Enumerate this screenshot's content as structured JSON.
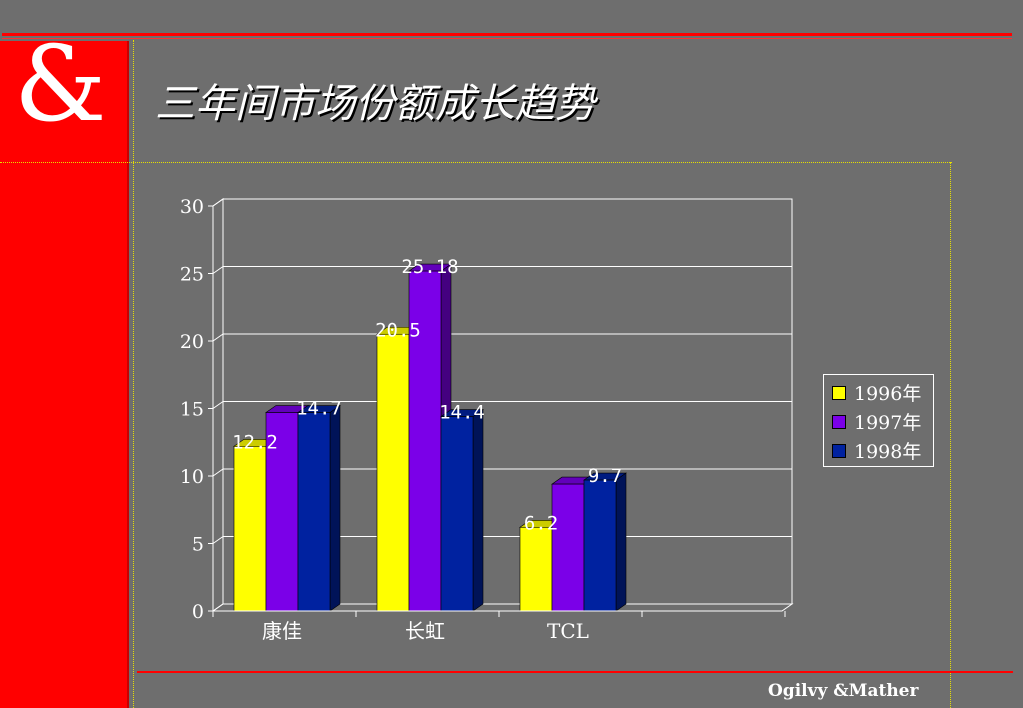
{
  "slide": {
    "logo_symbol": "&",
    "title": "三年间市场份额成长趋势",
    "footer": "Ogilvy &Mather",
    "colors": {
      "red": "#ff0000",
      "background": "#6e6e6e",
      "dotted_lines": "#e8e000"
    }
  },
  "chart_data": {
    "type": "bar",
    "style": "3d-clustered",
    "categories": [
      "康佳",
      "长虹",
      "TCL"
    ],
    "series": [
      {
        "name": "1996年",
        "color": "#ffff00",
        "values": [
          12.2,
          20.5,
          6.2
        ]
      },
      {
        "name": "1997年",
        "color": "#7b00e8",
        "values": [
          14.7,
          25.18,
          9.4
        ]
      },
      {
        "name": "1998年",
        "color": "#0022a0",
        "values": [
          14.7,
          14.4,
          9.7
        ]
      }
    ],
    "data_labels": [
      {
        "series": 0,
        "index": 0,
        "text": "12.2"
      },
      {
        "series": 2,
        "index": 0,
        "text": "14.7"
      },
      {
        "series": 0,
        "index": 1,
        "text": "20.5"
      },
      {
        "series": 1,
        "index": 1,
        "text": "25.18"
      },
      {
        "series": 2,
        "index": 1,
        "text": "14.4"
      },
      {
        "series": 0,
        "index": 2,
        "text": "6.2"
      },
      {
        "series": 2,
        "index": 2,
        "text": "9.7"
      }
    ],
    "yticks": [
      "0",
      "5",
      "10",
      "15",
      "20",
      "25",
      "30"
    ],
    "ylim": [
      0,
      30
    ],
    "grid": true,
    "legend_position": "right"
  }
}
